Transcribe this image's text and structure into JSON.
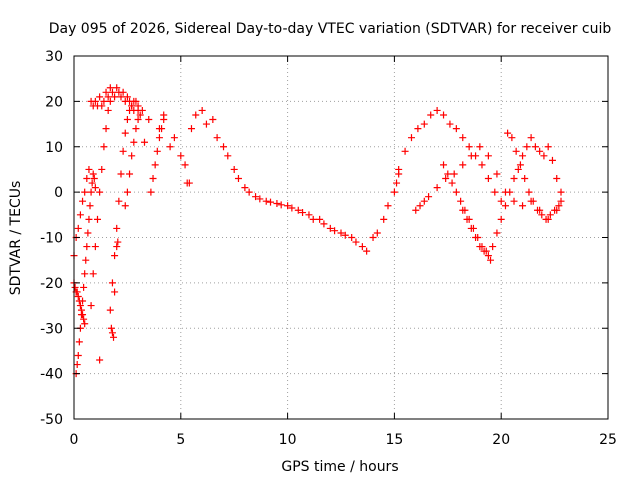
{
  "chart_data": {
    "type": "scatter",
    "title": "Day 095 of 2026, Sidereal Day-to-day VTEC variation (SDTVAR) for receiver cuib",
    "xlabel": "GPS time / hours",
    "ylabel": "SDTVAR / TECUs",
    "xlim": [
      0,
      25
    ],
    "ylim": [
      -50,
      30
    ],
    "xticks": [
      0,
      5,
      10,
      15,
      20,
      25
    ],
    "yticks": [
      -50,
      -40,
      -30,
      -20,
      -10,
      0,
      10,
      20,
      30
    ],
    "grid": true,
    "marker": "+",
    "series_color": "#ff0000",
    "series": [
      {
        "name": "main-trend",
        "x": [
          3.0,
          3.5,
          4.0,
          4.5,
          5.0,
          5.5,
          6.0,
          6.5,
          7.0,
          7.5,
          8.0,
          8.5,
          9.0,
          9.5,
          10.0,
          10.5,
          11.0,
          11.5,
          12.0,
          12.5,
          13.0,
          13.5,
          14.0,
          14.5,
          15.0,
          15.2
        ],
        "y": [
          18,
          16,
          14,
          10,
          8,
          14,
          18,
          16,
          10,
          5,
          1,
          -1,
          -2,
          -2.5,
          -3,
          -4,
          -5,
          -6,
          -8,
          -9,
          -10,
          -12,
          -10,
          -6,
          0,
          4
        ]
      },
      {
        "name": "main-trend-b",
        "x": [
          4.2,
          4.7,
          5.2,
          5.7,
          6.2,
          6.7,
          7.2,
          7.7,
          8.2,
          8.7,
          9.2,
          9.7,
          10.2,
          10.7,
          11.2,
          11.7,
          12.2,
          12.7,
          13.2,
          13.7,
          14.2,
          14.7,
          15.1
        ],
        "y": [
          17,
          12,
          6,
          17,
          15,
          12,
          8,
          3,
          0,
          -1.5,
          -2.2,
          -2.8,
          -3.5,
          -4.5,
          -6,
          -7,
          -8.5,
          -9.5,
          -11,
          -13,
          -9,
          -3,
          2
        ]
      },
      {
        "name": "early-arcs",
        "x": [
          0.0,
          0.1,
          0.2,
          0.3,
          0.4,
          0.5,
          0.6,
          0.7,
          0.8,
          0.9,
          1.0,
          1.1,
          1.2,
          1.3,
          1.4,
          1.5,
          1.6,
          1.7,
          1.8,
          1.9,
          2.0,
          2.1,
          2.2,
          2.3,
          2.4,
          2.5,
          2.6,
          2.7,
          2.8,
          2.9,
          3.0
        ],
        "y": [
          -14,
          -10,
          -8,
          -5,
          -2,
          0,
          3,
          5,
          20,
          19,
          20,
          19,
          21,
          19,
          20,
          22,
          21,
          23,
          22,
          21,
          23,
          22,
          21,
          22,
          20,
          21,
          20,
          19,
          18,
          20,
          19
        ]
      },
      {
        "name": "rising-streak-1",
        "x": [
          0.1,
          0.15,
          0.2,
          0.25,
          0.3,
          0.35,
          0.4,
          0.45,
          0.5,
          0.55,
          0.6,
          0.65,
          0.7,
          0.75,
          0.8,
          0.85,
          0.9,
          0.95,
          1.0
        ],
        "y": [
          -40,
          -38,
          -36,
          -33,
          -30,
          -27,
          -24,
          -21,
          -18,
          -15,
          -12,
          -9,
          -6,
          -3,
          0,
          2,
          4,
          3,
          1
        ]
      },
      {
        "name": "rising-streak-2",
        "x": [
          0.8,
          0.9,
          1.0,
          1.1,
          1.2,
          1.3,
          1.4,
          1.5,
          1.6,
          1.7
        ],
        "y": [
          -25,
          -18,
          -12,
          -6,
          0,
          5,
          10,
          14,
          18,
          20
        ]
      },
      {
        "name": "rising-streak-3",
        "x": [
          1.7,
          1.8,
          1.9,
          2.0,
          2.1,
          2.2,
          2.3,
          2.4,
          2.5,
          2.6,
          2.7,
          2.8
        ],
        "y": [
          -26,
          -20,
          -14,
          -8,
          -2,
          4,
          9,
          13,
          16,
          18,
          19,
          20
        ]
      },
      {
        "name": "rising-streak-4",
        "x": [
          2.4,
          2.5,
          2.6,
          2.7,
          2.8,
          2.9,
          3.0,
          3.1,
          3.2
        ],
        "y": [
          -3,
          0,
          4,
          8,
          11,
          14,
          16,
          17,
          18
        ]
      },
      {
        "name": "rising-streak-5",
        "x": [
          3.6,
          3.7,
          3.8,
          3.9,
          4.0,
          4.1,
          4.2
        ],
        "y": [
          0,
          3,
          6,
          9,
          12,
          14,
          16
        ]
      },
      {
        "name": "falling-streak",
        "x": [
          0.0,
          0.05,
          0.1,
          0.15,
          0.2,
          0.25,
          0.3,
          0.35,
          0.4,
          0.45,
          0.5
        ],
        "y": [
          -20,
          -21,
          -22,
          -22,
          -23,
          -24,
          -25,
          -26,
          -27,
          -28,
          -29
        ]
      },
      {
        "name": "isolated",
        "x": [
          1.2,
          1.75,
          1.8,
          1.85,
          1.9,
          2.0,
          2.05,
          5.3,
          5.4,
          3.3
        ],
        "y": [
          -37,
          -30,
          -31,
          -32,
          -22,
          -12,
          -11,
          2,
          2,
          11
        ]
      },
      {
        "name": "late-arcs-1",
        "x": [
          15.2,
          15.5,
          15.8,
          16.1,
          16.4,
          16.7,
          17.0,
          17.3,
          17.6,
          17.9,
          18.2,
          18.5,
          18.8,
          19.1,
          19.4,
          19.7,
          20.0
        ],
        "y": [
          5,
          9,
          12,
          14,
          15,
          17,
          18,
          17,
          15,
          14,
          12,
          10,
          8,
          6,
          3,
          0,
          -2
        ]
      },
      {
        "name": "late-arcs-2",
        "x": [
          16.0,
          16.2,
          16.4,
          16.6,
          17.0,
          17.4,
          17.8,
          18.2,
          18.6,
          19.0,
          19.4,
          19.8,
          20.2,
          20.6,
          21.0,
          21.4,
          21.8,
          22.2,
          22.6,
          22.8
        ],
        "y": [
          -4,
          -3,
          -2,
          -1,
          1,
          3,
          4,
          6,
          8,
          10,
          8,
          4,
          0,
          -2,
          -3,
          -2,
          -4,
          -6,
          -4,
          -2
        ]
      },
      {
        "name": "late-arcs-3",
        "x": [
          18.2,
          18.4,
          18.6,
          18.8,
          19.0,
          19.2,
          19.4,
          19.6,
          19.8,
          20.0,
          20.2,
          20.4,
          20.6,
          20.8,
          21.0,
          21.2,
          21.4,
          21.6,
          21.8,
          22.0,
          22.2,
          22.4,
          22.6,
          22.8
        ],
        "y": [
          -4,
          -6,
          -8,
          -10,
          -12,
          -13,
          -14,
          -12,
          -9,
          -6,
          -3,
          0,
          3,
          5,
          8,
          10,
          12,
          10,
          9,
          8,
          10,
          7,
          3,
          0
        ]
      },
      {
        "name": "late-arcs-4",
        "x": [
          17.3,
          17.5,
          17.7,
          17.9,
          18.1,
          18.3,
          18.5,
          18.7,
          18.9,
          19.1,
          19.3,
          19.5
        ],
        "y": [
          6,
          4,
          2,
          0,
          -2,
          -4,
          -6,
          -8,
          -10,
          -12,
          -13,
          -15
        ]
      },
      {
        "name": "late-arcs-5",
        "x": [
          20.3,
          20.5,
          20.7,
          20.9,
          21.1,
          21.3,
          21.5,
          21.7,
          21.9,
          22.1,
          22.3,
          22.5,
          22.7
        ],
        "y": [
          13,
          12,
          9,
          6,
          3,
          0,
          -2,
          -4,
          -5,
          -6,
          -5,
          -4,
          -3
        ]
      }
    ]
  }
}
